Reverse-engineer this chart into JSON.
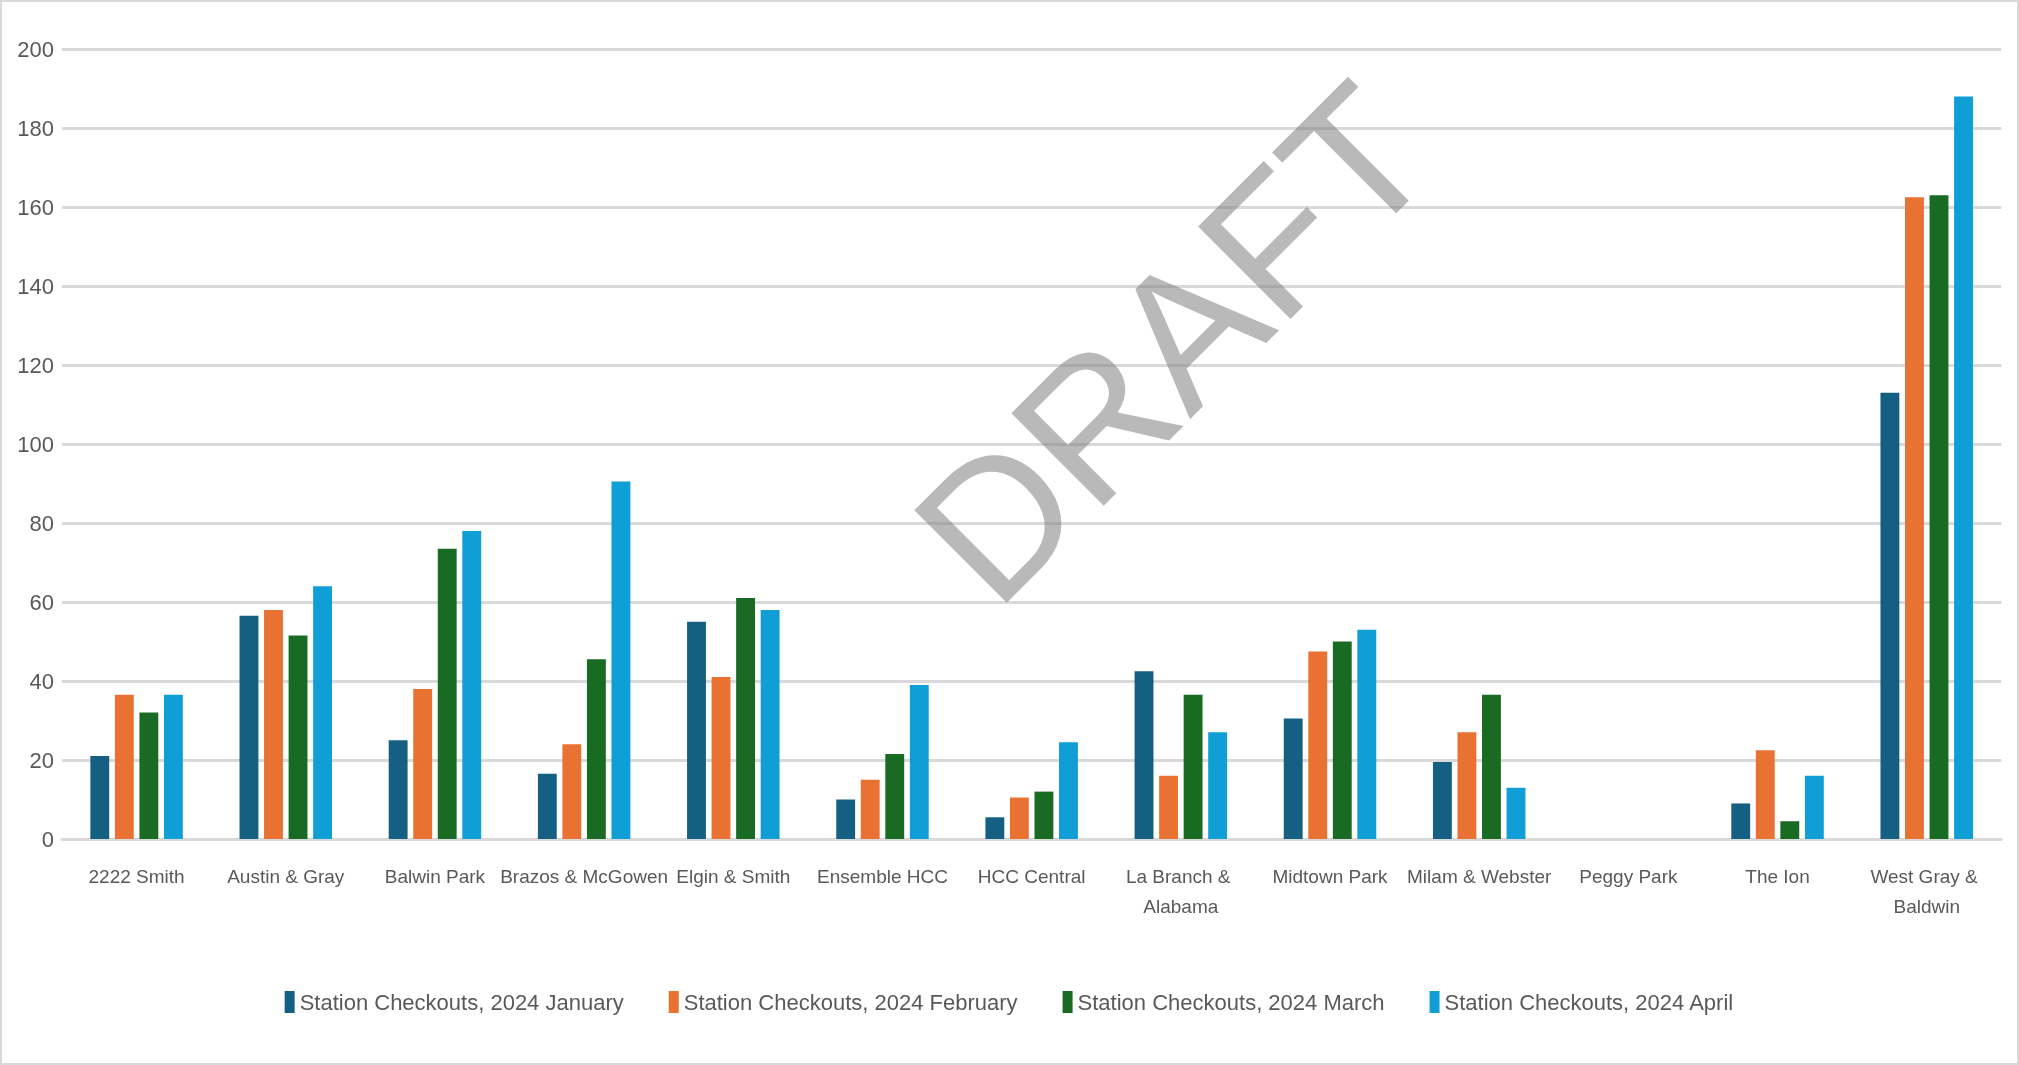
{
  "chart_data": {
    "type": "bar",
    "categories": [
      "2222 Smith",
      "Austin & Gray",
      "Balwin Park",
      "Brazos & McGowen",
      "Elgin & Smith",
      "Ensemble HCC",
      "HCC Central",
      "La Branch & Alabama",
      "Midtown Park",
      "Milam & Webster",
      "Peggy Park",
      "The Ion",
      "West Gray & Baldwin"
    ],
    "series": [
      {
        "name": "Station Checkouts, 2024 January",
        "color": "#156082",
        "values": [
          21,
          56.5,
          25,
          16.5,
          55,
          10,
          5.5,
          42.5,
          30.5,
          19.5,
          0,
          9,
          113
        ]
      },
      {
        "name": "Station Checkouts, 2024 February",
        "color": "#e97132",
        "values": [
          36.5,
          58,
          38,
          24,
          41,
          15,
          10.5,
          16,
          47.5,
          27,
          0,
          22.5,
          162.5
        ]
      },
      {
        "name": "Station Checkouts, 2024 March",
        "color": "#196b24",
        "values": [
          32,
          51.5,
          73.5,
          45.5,
          61,
          21.5,
          12,
          36.5,
          50,
          36.5,
          0,
          4.5,
          163
        ]
      },
      {
        "name": "Station Checkouts, 2024 April",
        "color": "#0f9ed5",
        "values": [
          36.5,
          64,
          78,
          90.5,
          58,
          39,
          24.5,
          27,
          53,
          13,
          0,
          16,
          188
        ]
      }
    ],
    "ylim": [
      0,
      200
    ],
    "yticks": [
      0,
      20,
      40,
      60,
      80,
      100,
      120,
      140,
      160,
      180,
      200
    ],
    "grid": "y",
    "legend": "bottom",
    "annotations": [
      "DRAFT"
    ]
  }
}
